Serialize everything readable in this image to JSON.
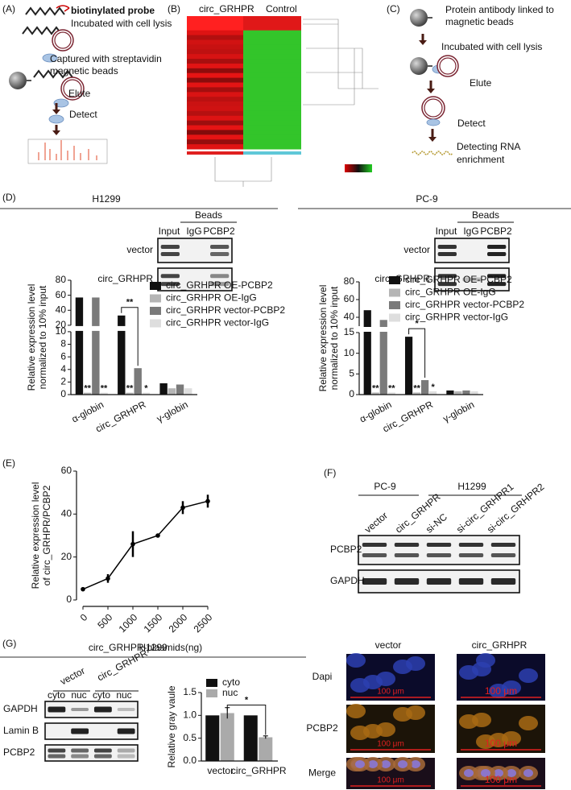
{
  "panel_a": {
    "label": "(A)",
    "probe": "biotinylated probe",
    "incubated": "Incubated with cell lysis",
    "captured": [
      "Captured with streptavidin",
      "magnetic beads"
    ],
    "elute": "Elute",
    "detect": "Detect"
  },
  "panel_b": {
    "label": "(B)",
    "columns": [
      "circ_GRHPR",
      "Control"
    ]
  },
  "panel_c": {
    "label": "(C)",
    "antibody": [
      "Protein antibody linked to",
      "magnetic beads"
    ],
    "incubated": "Incubated with cell lysis",
    "elute": "Elute",
    "detect": "Detect",
    "detecting": [
      "Detecting RNA",
      "enrichment"
    ]
  },
  "panel_d": {
    "label": "(D)",
    "cells": [
      "H1299",
      "PC-9"
    ],
    "beads": "Beads",
    "lanes": [
      "Input",
      "IgG",
      "PCBP2"
    ],
    "rows": [
      "vector",
      "circ_GRHPR"
    ]
  },
  "panel_e": {
    "label": "(E)"
  },
  "panel_f": {
    "label": "(F)",
    "cells": [
      "PC-9",
      "H1299"
    ],
    "lanes": [
      "vector",
      "circ_GRHPR",
      "si-NC",
      "si-circ_GRHPR1",
      "si-circ_GRHPR2"
    ],
    "rows": [
      "PCBP2",
      "GAPDH"
    ]
  },
  "panel_g": {
    "label": "(G)",
    "cell": "H1299",
    "groups": [
      "vector",
      "circ_GRHPR"
    ],
    "fractions": [
      "cyto",
      "nuc",
      "cyto",
      "nuc"
    ],
    "rows": [
      "GAPDH",
      "Lamin B",
      "PCBP2"
    ],
    "image_columns": [
      "vector",
      "circ_GRHPR"
    ],
    "image_rows": [
      "Dapi",
      "PCBP2",
      "Merge"
    ],
    "scale_bar": "100 μm"
  },
  "chart_data": [
    {
      "type": "bar",
      "ylabel": [
        "Relative expression level",
        "normalized to 10% input"
      ],
      "categories": [
        "α-globin",
        "circ_GRHPR",
        "γ-globin"
      ],
      "series": [
        {
          "name": "circ_GRHPR OE-PCBP2",
          "color": "#111111",
          "values": [
            57,
            33,
            1.8
          ]
        },
        {
          "name": "circ_GRHPR OE-IgG",
          "color": "#b5b5b5",
          "values": [
            0.3,
            0.3,
            1
          ]
        },
        {
          "name": "circ_GRHPR vector-PCBP2",
          "color": "#7a7a7a",
          "values": [
            57,
            4.2,
            1.6
          ]
        },
        {
          "name": "circ_GRHPR vector-IgG",
          "color": "#dedede",
          "values": [
            0.3,
            0.3,
            1
          ]
        }
      ],
      "ylim": [
        0,
        80
      ],
      "yticks": [
        0,
        2,
        4,
        6,
        8,
        10,
        20,
        40,
        60,
        80
      ],
      "axis_break": [
        10,
        20
      ],
      "annotations": [
        {
          "text": "**",
          "category": 0,
          "series": 1
        },
        {
          "text": "**",
          "category": 0,
          "series": 3
        },
        {
          "text": "**",
          "category": 1,
          "series": 1
        },
        {
          "text": "*",
          "category": 1,
          "series": 3
        }
      ],
      "bracket": {
        "text": "**",
        "points": [
          [
            1,
            0
          ],
          [
            1,
            2
          ]
        ]
      }
    },
    {
      "type": "bar",
      "ylabel": [
        "Relative expression level",
        "normalized to 10% input"
      ],
      "categories": [
        "α-globin",
        "circ_GRHPR",
        "γ-globin"
      ],
      "series": [
        {
          "name": "circ_GRHPR OE-PCBP2",
          "color": "#111111",
          "values": [
            48,
            14,
            1
          ]
        },
        {
          "name": "circ_GRHPR OE-IgG",
          "color": "#b5b5b5",
          "values": [
            0.5,
            0.5,
            0.8
          ]
        },
        {
          "name": "circ_GRHPR vector-PCBP2",
          "color": "#7a7a7a",
          "values": [
            37,
            3.5,
            1
          ]
        },
        {
          "name": "circ_GRHPR vector-IgG",
          "color": "#dedede",
          "values": [
            0.5,
            0.8,
            0.8
          ]
        }
      ],
      "ylim": [
        0,
        80
      ],
      "yticks": [
        0,
        5,
        10,
        15,
        40,
        60,
        80
      ],
      "axis_break": [
        15,
        30
      ],
      "annotations": [
        {
          "text": "**",
          "category": 0,
          "series": 1
        },
        {
          "text": "**",
          "category": 0,
          "series": 3
        },
        {
          "text": "**",
          "category": 1,
          "series": 1
        },
        {
          "text": "*",
          "category": 1,
          "series": 3
        }
      ],
      "bracket": {
        "text": "*",
        "points": [
          [
            1,
            0
          ],
          [
            1,
            2
          ]
        ]
      }
    },
    {
      "type": "line",
      "ylabel": [
        "Relative expression level",
        "of circ_GRHPR/PCBP2"
      ],
      "xlabel": "circ_GRHPR-plasmids(ng)",
      "x": [
        0,
        500,
        1000,
        1500,
        2000,
        2500
      ],
      "values": [
        5,
        10,
        26,
        30,
        43,
        46
      ],
      "errors": [
        0.5,
        2,
        6,
        0.5,
        3,
        3
      ],
      "color": "#000000",
      "xlim": [
        0,
        2500
      ],
      "ylim": [
        0,
        60
      ],
      "xticks": [
        0,
        500,
        1000,
        1500,
        2000,
        2500
      ],
      "yticks": [
        0,
        20,
        40,
        60
      ]
    },
    {
      "type": "bar",
      "ylabel": "Relative gray vaule",
      "categories": [
        "vector",
        "circ_GRHPR"
      ],
      "series": [
        {
          "name": "cyto",
          "color": "#111111",
          "values": [
            1,
            1
          ]
        },
        {
          "name": "nuc",
          "color": "#aaaaaa",
          "values": [
            1.05,
            0.52
          ],
          "errors": [
            0.12,
            0.03
          ]
        }
      ],
      "ylim": [
        0,
        1.5
      ],
      "yticks": [
        {
          "value": 0,
          "label": "0.0"
        },
        {
          "value": 0.5,
          "label": "0.5"
        },
        {
          "value": 1,
          "label": "1.0"
        },
        {
          "value": 1.5,
          "label": "1.5"
        }
      ],
      "bracket": {
        "text": "*",
        "points": [
          [
            0,
            1
          ],
          [
            1,
            1
          ]
        ]
      }
    }
  ]
}
